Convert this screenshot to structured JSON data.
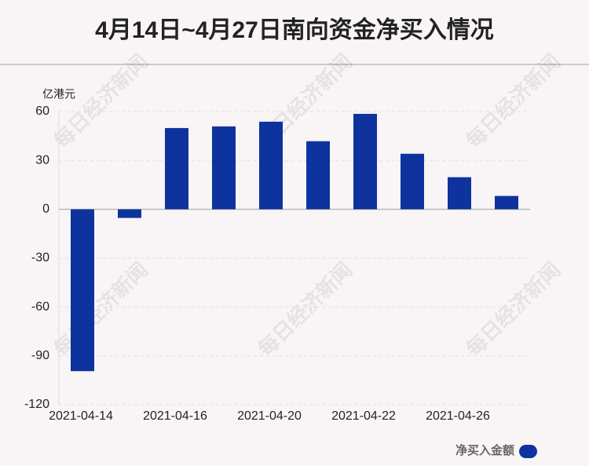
{
  "chart_data": {
    "type": "bar",
    "title": "4月14日~4月27日南向资金净买入情况",
    "y_axis_label": "亿港元",
    "watermark": "每日经济新闻",
    "categories": [
      "2021-04-14",
      null,
      "2021-04-16",
      null,
      "2021-04-20",
      null,
      "2021-04-22",
      null,
      "2021-04-26",
      null
    ],
    "series": [
      {
        "name": "净买入金额",
        "color": "#0e339e",
        "values": [
          -99.4,
          -5.3,
          49.9,
          50.9,
          53.8,
          41.8,
          58.6,
          34.1,
          19.7,
          8.2
        ]
      }
    ],
    "ylim": [
      -120,
      60
    ],
    "yticks": [
      -120,
      -90,
      -60,
      -30,
      0,
      30,
      60
    ],
    "grid": true,
    "legend": "bottom-right"
  }
}
